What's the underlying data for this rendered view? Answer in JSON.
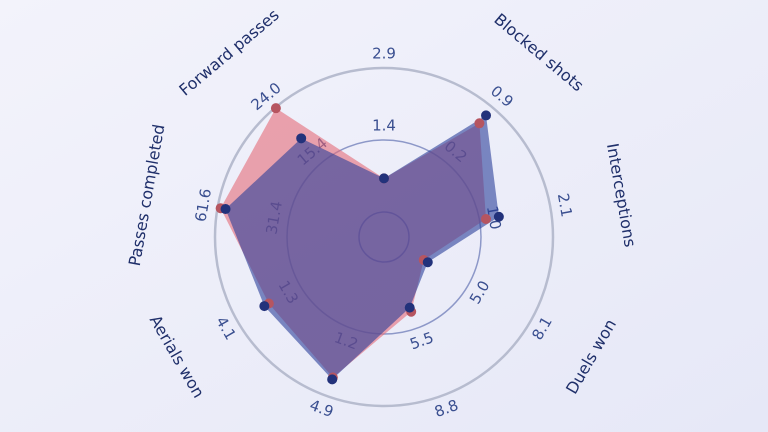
{
  "chart_data": {
    "type": "radar",
    "categories": [
      null,
      "Blocked shots",
      "Interceptions",
      "Duels won",
      null,
      null,
      "Aerials won",
      "Passes completed",
      "Forward passes"
    ],
    "axes": [
      {
        "ylim": [
          -0.1,
          2.9
        ],
        "yticks": [
          1.4,
          2.9
        ]
      },
      {
        "ylim": [
          -0.5,
          0.9
        ],
        "yticks": [
          0.2,
          0.9
        ]
      },
      {
        "ylim": [
          -0.1,
          2.1
        ],
        "yticks": [
          {
            "value": 1,
            "label": "1.0"
          },
          2.1
        ]
      },
      {
        "ylim": [
          1.9,
          8.1
        ],
        "yticks": [
          {
            "value": 5,
            "label": "5.0"
          },
          8.1
        ]
      },
      {
        "ylim": [
          2.2,
          8.8
        ],
        "yticks": [
          5.5,
          8.8
        ]
      },
      {
        "ylim": [
          -2.5,
          4.9
        ],
        "yticks": [
          1.2,
          4.9
        ]
      },
      {
        "ylim": [
          -1.5,
          4.1
        ],
        "yticks": [
          1.3,
          4.1
        ]
      },
      {
        "ylim": [
          1.2,
          61.6
        ],
        "yticks": [
          31.4,
          61.6
        ]
      },
      {
        "ylim": [
          6.8,
          24
        ],
        "yticks": [
          15.4,
          {
            "value": 24,
            "label": "24.0"
          }
        ]
      }
    ],
    "series": [
      {
        "color": "#e46a78",
        "values": [
          0.6,
          0.7,
          1.1,
          2.8,
          4.7,
          3.9,
          2.7,
          60.3,
          23.9
        ]
      },
      {
        "color": "#2c3f9a",
        "values": [
          0.6,
          0.8,
          1.3,
          3.0,
          4.5,
          4.0,
          2.9,
          58.2,
          19.2
        ]
      }
    ]
  }
}
